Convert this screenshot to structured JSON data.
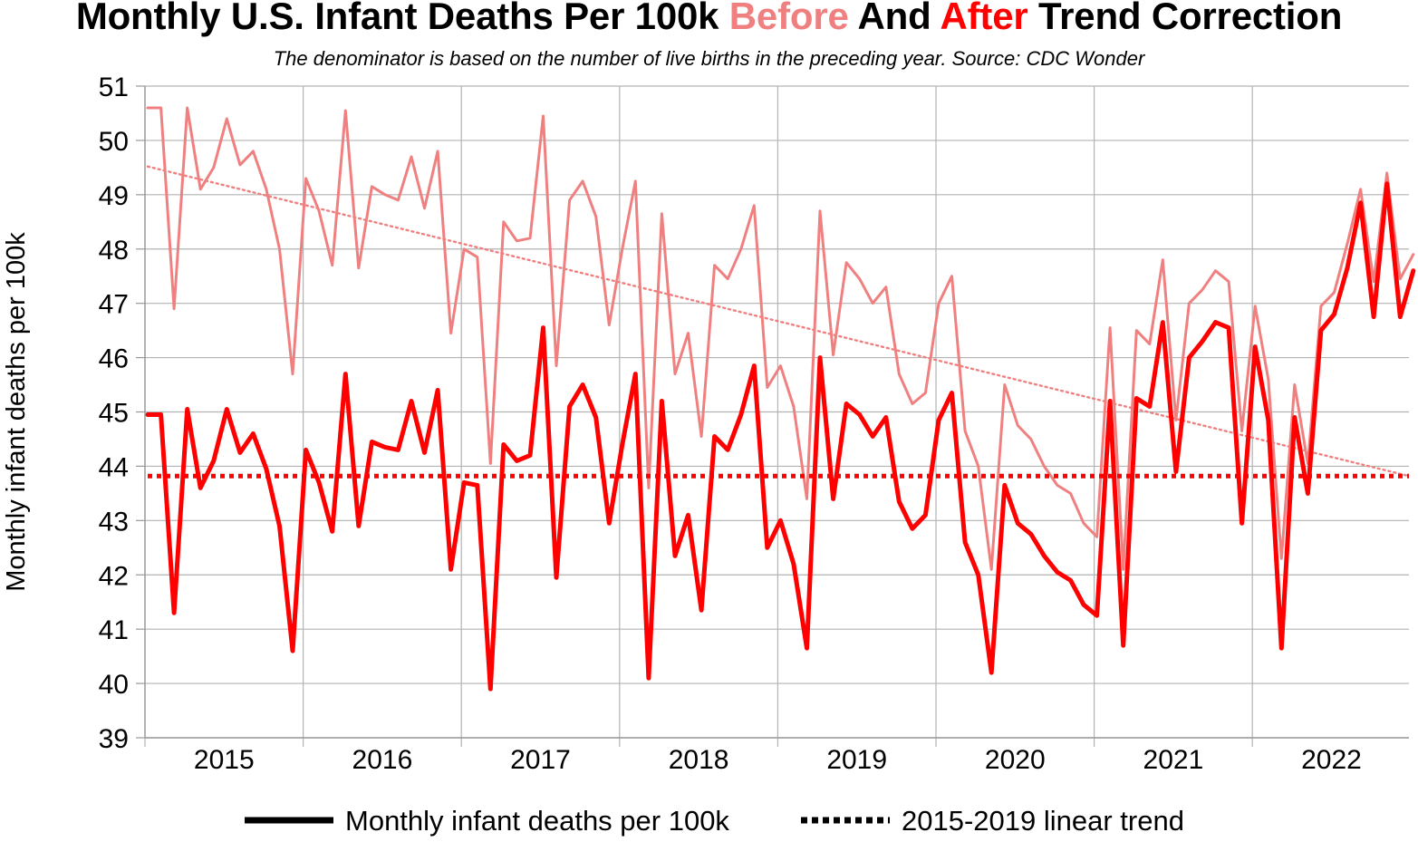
{
  "header": {
    "title_part1": "Monthly U.S. Infant Deaths Per 100k ",
    "title_before": "Before",
    "title_part2": " And ",
    "title_after": "After",
    "title_part3": " Trend Correction",
    "subtitle": "The denominator is based on the number of live births in the preceding year. Source: CDC Wonder"
  },
  "colors": {
    "before": "#f08080",
    "after": "#ff0000",
    "grid": "#b3b3b3",
    "axis": "#999999"
  },
  "chart_data": {
    "type": "line",
    "title": "Monthly U.S. Infant Deaths Per 100k Before And After Trend Correction",
    "subtitle": "The denominator is based on the number of live births in the preceding year. Source: CDC Wonder",
    "ylabel": "Monthly infant deaths per 100k",
    "xlabel": "",
    "ylim": [
      39,
      51
    ],
    "yticks": [
      39,
      40,
      41,
      42,
      43,
      44,
      45,
      46,
      47,
      48,
      49,
      50,
      51
    ],
    "years": [
      "2015",
      "2016",
      "2017",
      "2018",
      "2019",
      "2020",
      "2021",
      "2022"
    ],
    "grid": true,
    "legend_position": "bottom",
    "legend": [
      {
        "label": "Monthly infant deaths per 100k",
        "style": "solid"
      },
      {
        "label": "2015-2019 linear trend",
        "style": "dotted"
      }
    ],
    "series": [
      {
        "key": "before",
        "values": [
          50.6,
          50.6,
          46.9,
          50.6,
          49.1,
          49.5,
          50.4,
          49.55,
          49.8,
          49.1,
          48.0,
          45.7,
          49.3,
          48.7,
          47.7,
          50.55,
          47.65,
          49.15,
          49.0,
          48.9,
          49.7,
          48.75,
          49.8,
          46.45,
          48.0,
          47.85,
          44.05,
          48.5,
          48.15,
          48.2,
          50.45,
          45.85,
          48.9,
          49.25,
          48.6,
          46.6,
          48.0,
          49.25,
          43.6,
          48.65,
          45.7,
          46.45,
          44.55,
          47.7,
          47.45,
          48.0,
          48.8,
          45.45,
          45.85,
          45.1,
          43.4,
          48.7,
          46.05,
          47.75,
          47.45,
          47.0,
          47.3,
          45.7,
          45.15,
          45.35,
          47.0,
          47.5,
          44.65,
          44.0,
          42.1,
          45.5,
          44.75,
          44.5,
          44.0,
          43.65,
          43.5,
          42.95,
          42.7,
          46.55,
          42.1,
          46.5,
          46.25,
          47.8,
          44.85,
          47.0,
          47.25,
          47.6,
          47.4,
          44.65,
          46.95,
          45.6,
          42.3,
          45.5,
          44.05,
          46.95,
          47.2,
          48.1,
          49.1,
          47.4,
          49.4,
          47.45,
          47.9
        ]
      },
      {
        "key": "after",
        "values": [
          44.95,
          44.95,
          41.3,
          45.05,
          43.6,
          44.1,
          45.05,
          44.25,
          44.6,
          43.95,
          42.9,
          40.6,
          44.3,
          43.7,
          42.8,
          45.7,
          42.9,
          44.45,
          44.35,
          44.3,
          45.2,
          44.25,
          45.4,
          42.1,
          43.7,
          43.65,
          39.9,
          44.4,
          44.1,
          44.2,
          46.55,
          41.95,
          45.1,
          45.5,
          44.9,
          42.95,
          44.4,
          45.7,
          40.1,
          45.2,
          42.35,
          43.1,
          41.35,
          44.55,
          44.3,
          44.95,
          45.85,
          42.5,
          43.0,
          42.2,
          40.65,
          46.0,
          43.4,
          45.15,
          44.95,
          44.55,
          44.9,
          43.35,
          42.85,
          43.1,
          44.85,
          45.35,
          42.6,
          42.0,
          40.2,
          43.65,
          42.95,
          42.75,
          42.35,
          42.05,
          41.9,
          41.45,
          41.25,
          45.2,
          40.7,
          45.25,
          45.1,
          46.65,
          43.9,
          46.0,
          46.3,
          46.65,
          46.55,
          42.95,
          46.2,
          44.85,
          40.65,
          44.9,
          43.5,
          46.5,
          46.8,
          47.65,
          48.85,
          46.75,
          49.2,
          46.75,
          47.6
        ]
      }
    ],
    "trends": [
      {
        "key": "before_trend",
        "start": 49.52,
        "end": 43.82
      },
      {
        "key": "after_trend",
        "start": 43.82,
        "end": 43.82
      }
    ]
  }
}
